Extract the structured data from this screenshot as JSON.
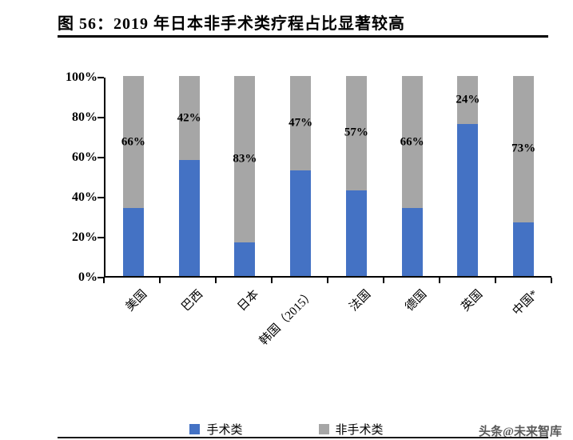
{
  "title": "图 56：2019 年日本非手术类疗程占比显著较高",
  "watermark": "头条@未来智库",
  "chart_data": {
    "type": "bar",
    "variant": "stacked-100-percent",
    "title": "2019 年日本非手术类疗程占比显著较高",
    "categories": [
      "美国",
      "巴西",
      "日本",
      "韩国（2015）",
      "法国",
      "德国",
      "英国",
      "中国*"
    ],
    "series": [
      {
        "id": "surgical",
        "name": "手术类",
        "color": "#4472C4",
        "values": [
          34,
          58,
          17,
          53,
          43,
          34,
          76,
          27
        ]
      },
      {
        "id": "non-surgical",
        "name": "非手术类",
        "color": "#A6A6A6",
        "values": [
          66,
          42,
          83,
          47,
          57,
          66,
          24,
          73
        ],
        "labels": [
          "66%",
          "42%",
          "83%",
          "47%",
          "57%",
          "66%",
          "24%",
          "73%"
        ]
      }
    ],
    "xlabel": "",
    "ylabel": "",
    "ylim": [
      0,
      100
    ],
    "y_ticks": [
      "0%",
      "20%",
      "40%",
      "60%",
      "80%",
      "100%"
    ],
    "grid": false,
    "legend_position": "bottom"
  }
}
